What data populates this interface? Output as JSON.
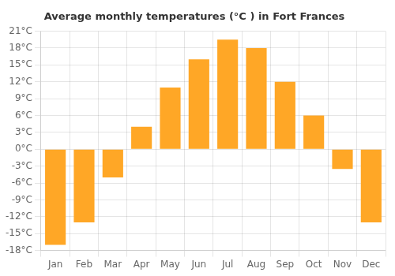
{
  "chart_data": {
    "type": "bar",
    "title": "Average monthly temperatures (°C ) in Fort Frances",
    "categories": [
      "Jan",
      "Feb",
      "Mar",
      "Apr",
      "May",
      "Jun",
      "Jul",
      "Aug",
      "Sep",
      "Oct",
      "Nov",
      "Dec"
    ],
    "values": [
      -17,
      -13,
      -5,
      4,
      11,
      16,
      19.5,
      18,
      12,
      6,
      -3.5,
      -13
    ],
    "color": "#FFA726",
    "ylim": [
      -18,
      21
    ],
    "yticks": [
      {
        "value": -18,
        "label": "-18°C"
      },
      {
        "value": -15,
        "label": "-15°C"
      },
      {
        "value": -12,
        "label": "-12°C"
      },
      {
        "value": -9,
        "label": "-9°C"
      },
      {
        "value": -6,
        "label": "-6°C"
      },
      {
        "value": -3,
        "label": "-3°C"
      },
      {
        "value": 0,
        "label": "0°C"
      },
      {
        "value": 3,
        "label": "3°C"
      },
      {
        "value": 6,
        "label": "6°C"
      },
      {
        "value": 9,
        "label": "9°C"
      },
      {
        "value": 12,
        "label": "12°C"
      },
      {
        "value": 15,
        "label": "15°C"
      },
      {
        "value": 18,
        "label": "18°C"
      },
      {
        "value": 21,
        "label": "21°C"
      }
    ],
    "grid": true
  }
}
